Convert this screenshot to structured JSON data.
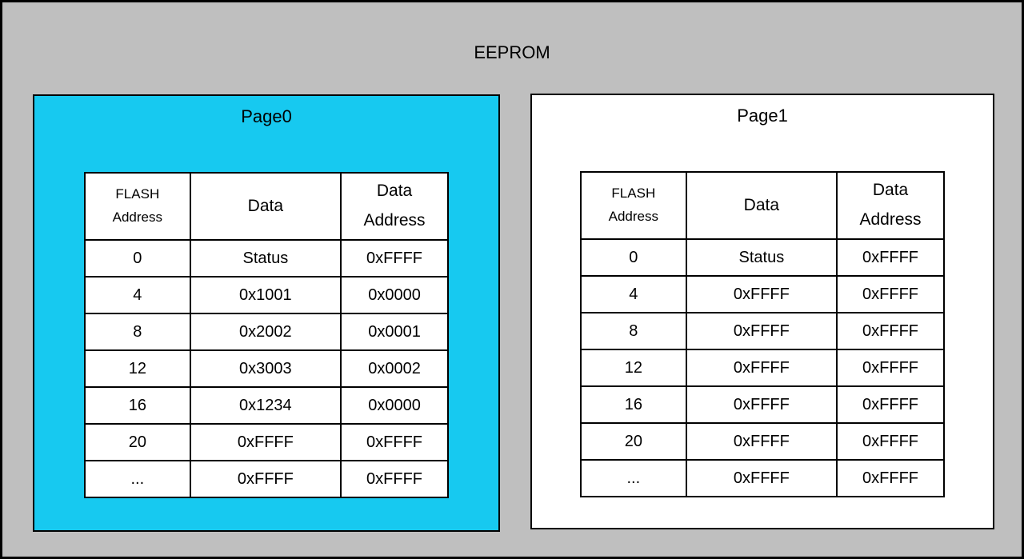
{
  "diagram": {
    "title": "EEPROM",
    "colors": {
      "background": "#bfbfbf",
      "border": "#000000",
      "page0_fill": "#17c9f0",
      "page1_fill": "#ffffff",
      "text": "#000000"
    },
    "pages": [
      {
        "label": "Page0",
        "table": {
          "headers": [
            "FLASH Address",
            "Data",
            "Data Address"
          ],
          "rows": [
            [
              "0",
              "Status",
              "0xFFFF"
            ],
            [
              "4",
              "0x1001",
              "0x0000"
            ],
            [
              "8",
              "0x2002",
              "0x0001"
            ],
            [
              "12",
              "0x3003",
              "0x0002"
            ],
            [
              "16",
              "0x1234",
              "0x0000"
            ],
            [
              "20",
              "0xFFFF",
              "0xFFFF"
            ],
            [
              "...",
              "0xFFFF",
              "0xFFFF"
            ]
          ]
        }
      },
      {
        "label": "Page1",
        "table": {
          "headers": [
            "FLASH Address",
            "Data",
            "Data Address"
          ],
          "rows": [
            [
              "0",
              "Status",
              "0xFFFF"
            ],
            [
              "4",
              "0xFFFF",
              "0xFFFF"
            ],
            [
              "8",
              "0xFFFF",
              "0xFFFF"
            ],
            [
              "12",
              "0xFFFF",
              "0xFFFF"
            ],
            [
              "16",
              "0xFFFF",
              "0xFFFF"
            ],
            [
              "20",
              "0xFFFF",
              "0xFFFF"
            ],
            [
              "...",
              "0xFFFF",
              "0xFFFF"
            ]
          ]
        }
      }
    ]
  }
}
